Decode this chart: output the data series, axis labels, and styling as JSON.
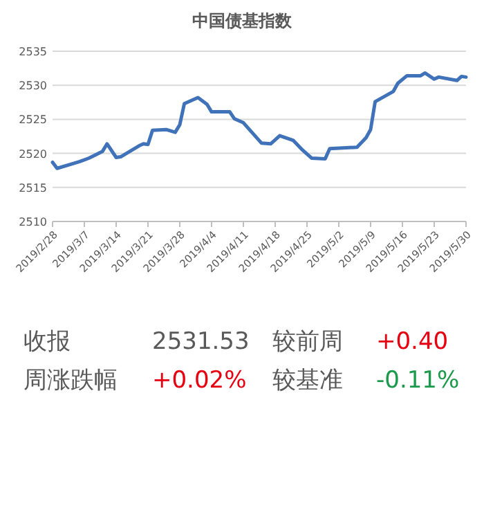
{
  "chart_data": [
    {
      "type": "line",
      "title": "中国债基指数",
      "x": [
        "2019-02-28",
        "2019-03-01",
        "2019-03-04",
        "2019-03-06",
        "2019-03-08",
        "2019-03-11",
        "2019-03-12",
        "2019-03-14",
        "2019-03-15",
        "2019-03-19",
        "2019-03-20",
        "2019-03-21",
        "2019-03-22",
        "2019-03-25",
        "2019-03-27",
        "2019-03-28",
        "2019-03-29",
        "2019-04-01",
        "2019-04-03",
        "2019-04-04",
        "2019-04-08",
        "2019-04-09",
        "2019-04-11",
        "2019-04-15",
        "2019-04-17",
        "2019-04-19",
        "2019-04-22",
        "2019-04-24",
        "2019-04-26",
        "2019-04-29",
        "2019-04-30",
        "2019-05-06",
        "2019-05-08",
        "2019-05-09",
        "2019-05-10",
        "2019-05-14",
        "2019-05-15",
        "2019-05-17",
        "2019-05-20",
        "2019-05-21",
        "2019-05-23",
        "2019-05-24",
        "2019-05-28",
        "2019-05-29",
        "2019-05-30"
      ],
      "series": [
        {
          "color": "#3f72b8",
          "values": [
            2518.7,
            2517.8,
            2518.4,
            2518.8,
            2519.3,
            2520.3,
            2521.4,
            2519.4,
            2519.5,
            2521.1,
            2521.4,
            2521.3,
            2523.4,
            2523.5,
            2523.1,
            2524.2,
            2527.3,
            2528.2,
            2527.2,
            2526.1,
            2526.1,
            2525.1,
            2524.5,
            2521.5,
            2521.4,
            2522.6,
            2521.9,
            2520.5,
            2519.3,
            2519.2,
            2520.7,
            2520.9,
            2522.3,
            2523.5,
            2527.6,
            2529.1,
            2530.3,
            2531.4,
            2531.4,
            2531.8,
            2530.9,
            2531.2,
            2530.7,
            2531.3,
            2531.2
          ]
        }
      ],
      "xlim": [
        "2019-02-28",
        "2019-05-30"
      ],
      "xticks": [
        {
          "value": "2019-02-28",
          "label": "2019/2/28"
        },
        {
          "value": "2019-03-07",
          "label": "2019/3/7"
        },
        {
          "value": "2019-03-14",
          "label": "2019/3/14"
        },
        {
          "value": "2019-03-21",
          "label": "2019/3/21"
        },
        {
          "value": "2019-03-28",
          "label": "2019/3/28"
        },
        {
          "value": "2019-04-04",
          "label": "2019/4/4"
        },
        {
          "value": "2019-04-11",
          "label": "2019/4/11"
        },
        {
          "value": "2019-04-18",
          "label": "2019/4/18"
        },
        {
          "value": "2019-04-25",
          "label": "2019/4/25"
        },
        {
          "value": "2019-05-02",
          "label": "2019/5/2"
        },
        {
          "value": "2019-05-09",
          "label": "2019/5/9"
        },
        {
          "value": "2019-05-16",
          "label": "2019/5/16"
        },
        {
          "value": "2019-05-23",
          "label": "2019/5/23"
        },
        {
          "value": "2019-05-30",
          "label": "2019/5/30"
        }
      ],
      "ylim": [
        2510,
        2535
      ],
      "yticks": [
        2510,
        2515,
        2520,
        2525,
        2530,
        2535
      ],
      "grid": "y",
      "marker": "none",
      "line_style": "solid"
    },
    {
      "type": "other",
      "annotations": [
        "收报",
        "2531.53",
        "较前周",
        "+0.40",
        "周涨跌幅",
        "+0.02%",
        "较基准",
        "-0.11%"
      ],
      "colors": [
        "#595959",
        "#595959",
        "#595959",
        "#e60012",
        "#595959",
        "#e60012",
        "#595959",
        "#1a9a4a"
      ]
    }
  ]
}
